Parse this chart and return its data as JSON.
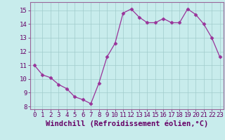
{
  "x": [
    0,
    1,
    2,
    3,
    4,
    5,
    6,
    7,
    8,
    9,
    10,
    11,
    12,
    13,
    14,
    15,
    16,
    17,
    18,
    19,
    20,
    21,
    22,
    23
  ],
  "y": [
    11.0,
    10.3,
    10.1,
    9.6,
    9.3,
    8.7,
    8.5,
    8.2,
    9.7,
    11.6,
    12.6,
    14.8,
    15.1,
    14.5,
    14.1,
    14.1,
    14.4,
    14.1,
    14.1,
    15.1,
    14.7,
    14.0,
    13.0,
    11.6
  ],
  "line_color": "#993399",
  "marker": "D",
  "markersize": 2.5,
  "linewidth": 0.9,
  "xlabel": "Windchill (Refroidissement éolien,°C)",
  "xlim": [
    -0.5,
    23.5
  ],
  "ylim": [
    7.8,
    15.6
  ],
  "yticks": [
    8,
    9,
    10,
    11,
    12,
    13,
    14,
    15
  ],
  "xticks": [
    0,
    1,
    2,
    3,
    4,
    5,
    6,
    7,
    8,
    9,
    10,
    11,
    12,
    13,
    14,
    15,
    16,
    17,
    18,
    19,
    20,
    21,
    22,
    23
  ],
  "bg_color": "#c8ecec",
  "grid_color": "#a0cccc",
  "tick_label_color": "#660066",
  "xlabel_color": "#660066",
  "xlabel_fontsize": 7.5,
  "tick_fontsize": 6.5,
  "spine_color": "#996699"
}
